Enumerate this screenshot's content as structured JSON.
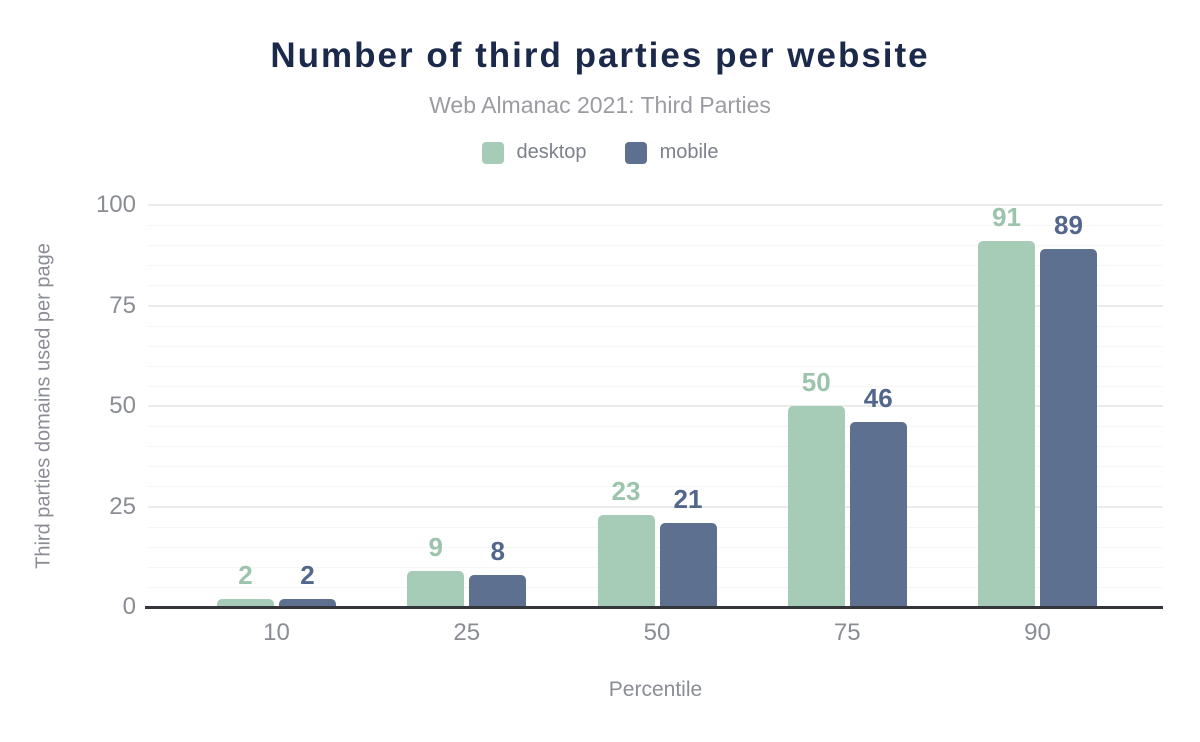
{
  "chart_data": {
    "type": "bar",
    "title": "Number of third parties per website",
    "subtitle": "Web Almanac 2021: Third Parties",
    "categories": [
      "10",
      "25",
      "50",
      "75",
      "90"
    ],
    "series": [
      {
        "name": "desktop",
        "color": "#a6cbb7",
        "label_color": "#9cc4ad",
        "values": [
          2,
          9,
          23,
          50,
          91
        ]
      },
      {
        "name": "mobile",
        "color": "#5d7090",
        "label_color": "#53668c",
        "values": [
          2,
          8,
          21,
          46,
          89
        ]
      }
    ],
    "xlabel": "Percentile",
    "ylabel": "Third parties domains used per page",
    "ylim": [
      0,
      100
    ],
    "yticks": [
      0,
      25,
      50,
      75,
      100
    ],
    "minor_grid_step": 5,
    "major_grid_step": 25,
    "grid": true,
    "legend_position": "top",
    "bar_value_labels": true
  },
  "style": {
    "title_color": "#1b2a4a",
    "subtitle_color": "#9b9ca1",
    "axis_text_color": "#8a8d94",
    "legend_text_color": "#7c818b",
    "axis_line_color": "#35363b",
    "minor_grid_color": "#f6f6f7",
    "major_grid_color": "#ebebec",
    "background": "#ffffff"
  }
}
